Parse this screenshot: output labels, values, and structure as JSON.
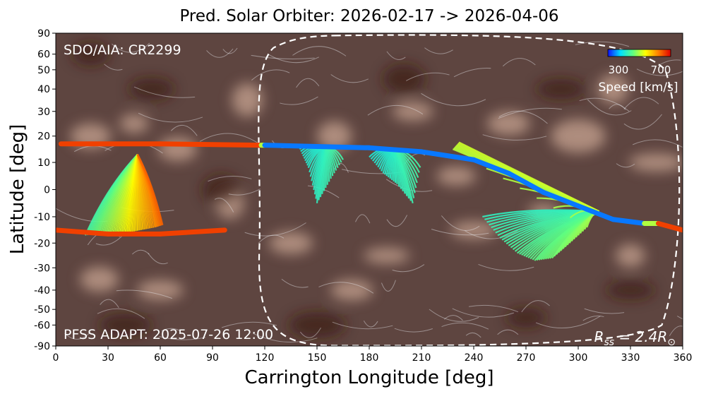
{
  "chart_data": {
    "type": "line",
    "title": "Pred. Solar Orbiter: 2026-02-17 -> 2026-04-06",
    "xlabel": "Carrington Longitude [deg]",
    "ylabel": "Latitude [deg]",
    "xlim": [
      0,
      360
    ],
    "ylim": [
      -90,
      90
    ],
    "y_scale": "sine-latitude",
    "x_ticks": [
      0,
      30,
      60,
      90,
      120,
      150,
      180,
      210,
      240,
      270,
      300,
      330,
      360
    ],
    "y_ticks": [
      -90,
      -60,
      -50,
      -40,
      -30,
      -20,
      -10,
      0,
      10,
      20,
      30,
      40,
      50,
      60,
      90
    ],
    "background_label": "SDO/AIA: CR2299",
    "model_label": "PFSS ADAPT: 2025-07-26 12:00",
    "source_surface_label": "R",
    "source_surface_sub": "ss",
    "source_surface_value": " = 2.4R",
    "source_surface_symbol": "⊙",
    "colorbar": {
      "label": "Speed [km/s]",
      "tick_labels": [
        "300",
        "700"
      ],
      "range": [
        250,
        750
      ],
      "colors": [
        "#1010ff",
        "#00e0ff",
        "#60ff80",
        "#ffff00",
        "#ff8000",
        "#e00000"
      ]
    },
    "series": [
      {
        "kind": "orbiter-footpoint-track",
        "points": [
          {
            "x": 3,
            "y": 17,
            "speed": 700
          },
          {
            "x": 60,
            "y": 17,
            "speed": 700
          },
          {
            "x": 118,
            "y": 16.5,
            "speed": 700
          },
          {
            "x": 120,
            "y": 16.5,
            "speed": 300
          },
          {
            "x": 150,
            "y": 16,
            "speed": 300
          },
          {
            "x": 180,
            "y": 15.5,
            "speed": 300
          },
          {
            "x": 210,
            "y": 14,
            "speed": 300
          },
          {
            "x": 240,
            "y": 11,
            "speed": 300
          },
          {
            "x": 260,
            "y": 6,
            "speed": 300
          },
          {
            "x": 280,
            "y": -1,
            "speed": 300
          },
          {
            "x": 300,
            "y": -6,
            "speed": 300
          },
          {
            "x": 320,
            "y": -11,
            "speed": 300
          },
          {
            "x": 338,
            "y": -12.5,
            "speed": 300
          },
          {
            "x": 346,
            "y": -12.5,
            "speed": 700
          },
          {
            "x": 360,
            "y": -15,
            "speed": 700
          }
        ]
      },
      {
        "kind": "orbiter-footpoint-track",
        "points": [
          {
            "x": 0,
            "y": -15,
            "speed": 700
          },
          {
            "x": 30,
            "y": -16.5,
            "speed": 700
          },
          {
            "x": 60,
            "y": -16.5,
            "speed": 700
          },
          {
            "x": 97,
            "y": -15,
            "speed": 700
          }
        ]
      }
    ],
    "field_line_fans": [
      {
        "source": {
          "x": 47,
          "y": 13
        },
        "ends": [
          [
            17,
            -17
          ],
          [
            25,
            -16
          ],
          [
            33,
            -16
          ],
          [
            41,
            -16
          ],
          [
            49,
            -15
          ],
          [
            57,
            -14
          ],
          [
            62,
            -13
          ]
        ],
        "speed_range": [
          420,
          680
        ]
      },
      {
        "source": {
          "x": 155,
          "y": 15.5
        },
        "ends": [
          [
            140,
            15
          ],
          [
            145,
            8
          ],
          [
            150,
            -5
          ],
          [
            158,
            4
          ],
          [
            166,
            12
          ]
        ],
        "speed_range": [
          380,
          420
        ]
      },
      {
        "source": {
          "x": 195,
          "y": 15
        },
        "ends": [
          [
            180,
            12
          ],
          [
            188,
            6
          ],
          [
            196,
            2
          ],
          [
            205,
            -5
          ],
          [
            210,
            10
          ]
        ],
        "speed_range": [
          380,
          420
        ]
      },
      {
        "source": {
          "x": 312,
          "y": -8
        },
        "ends": [
          [
            245,
            -10
          ],
          [
            255,
            -18
          ],
          [
            265,
            -24
          ],
          [
            275,
            -27
          ],
          [
            285,
            -26
          ],
          [
            295,
            -20
          ],
          [
            305,
            -14
          ],
          [
            228,
            15
          ],
          [
            232,
            18
          ]
        ],
        "speed_range": [
          400,
          520
        ]
      }
    ],
    "predicted_window_region": "dashed outline from about 117 to 355 deg longitude",
    "grid": false
  }
}
